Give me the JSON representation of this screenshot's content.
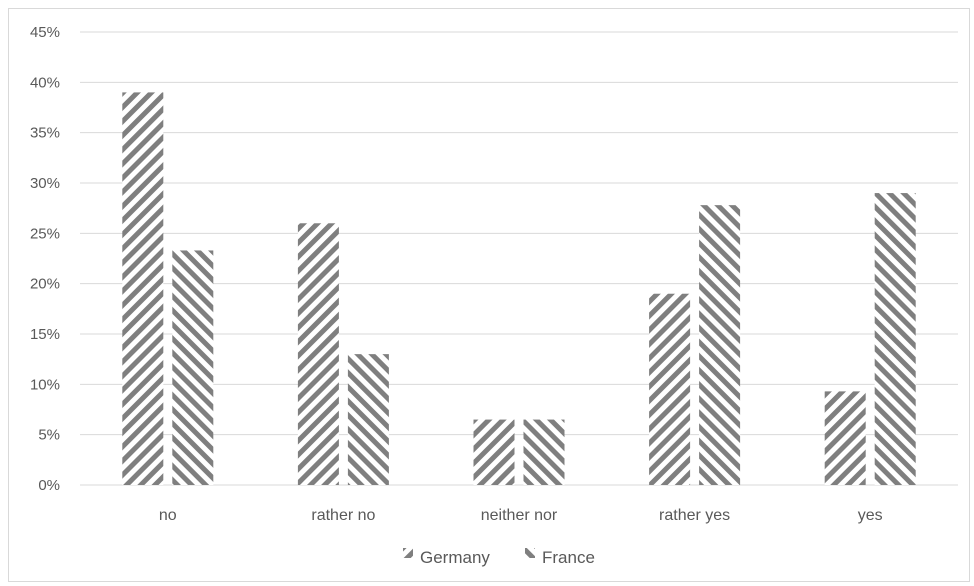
{
  "chart_data": {
    "type": "bar",
    "categories": [
      "no",
      "rather no",
      "neither nor",
      "rather yes",
      "yes"
    ],
    "series": [
      {
        "name": "Germany",
        "values": [
          39,
          26,
          6.5,
          19,
          9.3
        ],
        "pattern": "hatch-up",
        "color": "#7f7f7f"
      },
      {
        "name": "France",
        "values": [
          23.3,
          13,
          6.5,
          27.8,
          29
        ],
        "pattern": "hatch-down",
        "color": "#7f7f7f"
      }
    ],
    "ylim": [
      0,
      45
    ],
    "ytick_step": 5,
    "ytick_format": "percent",
    "grid": true,
    "legend_position": "bottom",
    "title": "",
    "xlabel": "",
    "ylabel": "",
    "gridline_color": "#d9d9d9"
  }
}
